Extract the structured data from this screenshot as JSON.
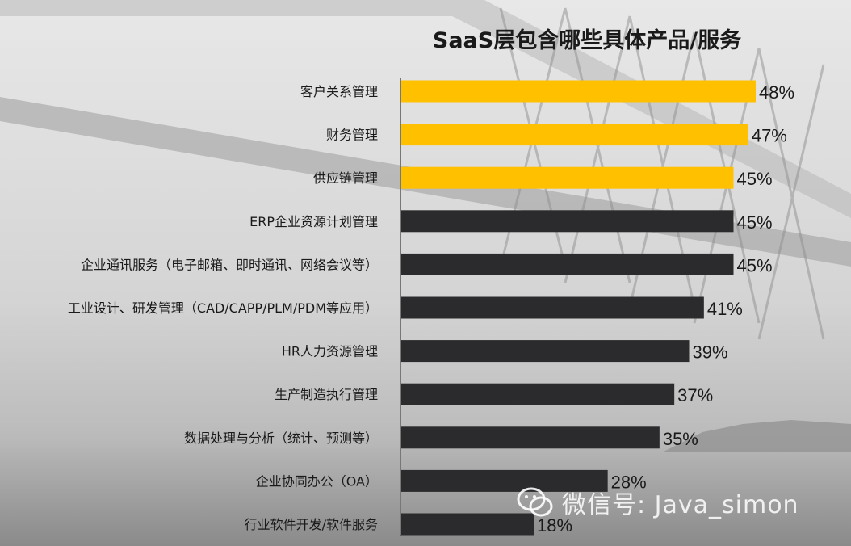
{
  "colors": {
    "highlight": "#ffc000",
    "bar": "#2b2b2d",
    "axis": "#777777",
    "text": "#1a1a1a"
  },
  "chart_data": {
    "type": "bar",
    "orientation": "horizontal",
    "title": "SaaS层包含哪些具体产品/服务",
    "categories": [
      "客户关系管理",
      "财务管理",
      "供应链管理",
      "ERP企业资源计划管理",
      "企业通讯服务（电子邮箱、即时通讯、网络会议等）",
      "工业设计、研发管理（CAD/CAPP/PLM/PDM等应用）",
      "HR人力资源管理",
      "生产制造执行管理",
      "数据处理与分析（统计、预测等）",
      "企业协同办公（OA）",
      "行业软件开发/软件服务"
    ],
    "values": [
      48,
      47,
      45,
      45,
      45,
      41,
      39,
      37,
      35,
      28,
      18
    ],
    "value_labels": [
      "48%",
      "47%",
      "45%",
      "45%",
      "45%",
      "41%",
      "39%",
      "37%",
      "35%",
      "28%",
      "18%"
    ],
    "highlighted": [
      true,
      true,
      true,
      false,
      false,
      false,
      false,
      false,
      false,
      false,
      false
    ],
    "unit": "%",
    "xlabel": "",
    "ylabel": "",
    "xlim": [
      0,
      48
    ],
    "grid": false,
    "legend": "none"
  },
  "watermark": {
    "icon": "wechat-icon",
    "text": "微信号: Java_simon"
  }
}
